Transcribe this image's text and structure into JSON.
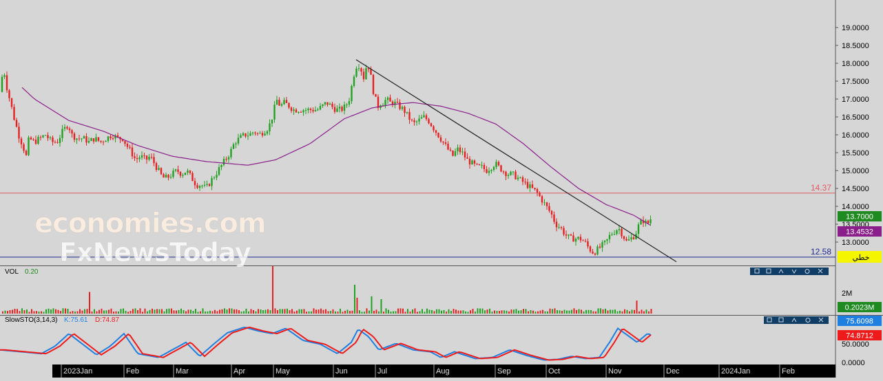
{
  "chart_data": {
    "type": "candlestick",
    "x_labels": [
      "2023Jan",
      "Feb",
      "Mar",
      "Apr",
      "May",
      "Jun",
      "Jul",
      "Aug",
      "Sep",
      "Oct",
      "Nov",
      "Dec",
      "2024Jan",
      "Feb"
    ],
    "price_ticks": [
      "19.0000",
      "18.5000",
      "18.0000",
      "17.5000",
      "17.0000",
      "16.5000",
      "16.0000",
      "15.5000",
      "15.0000",
      "14.5000",
      "14.0000",
      "13.5000",
      "13.0000"
    ],
    "ylim": [
      12.5,
      19.3
    ],
    "close_path": [
      [
        0,
        17.2
      ],
      [
        5,
        17.9
      ],
      [
        9,
        17.4
      ],
      [
        14,
        17.0
      ],
      [
        20,
        16.5
      ],
      [
        27,
        16.0
      ],
      [
        33,
        15.7
      ],
      [
        38,
        15.4
      ],
      [
        42,
        15.9
      ],
      [
        50,
        15.8
      ],
      [
        58,
        15.9
      ],
      [
        66,
        16.0
      ],
      [
        75,
        15.8
      ],
      [
        83,
        15.8
      ],
      [
        91,
        16.1
      ],
      [
        99,
        16.3
      ],
      [
        104,
        16.0
      ],
      [
        112,
        15.9
      ],
      [
        121,
        15.9
      ],
      [
        129,
        15.8
      ],
      [
        137,
        15.9
      ],
      [
        146,
        15.8
      ],
      [
        154,
        15.9
      ],
      [
        163,
        16.0
      ],
      [
        171,
        15.9
      ],
      [
        178,
        15.9
      ],
      [
        184,
        15.7
      ],
      [
        191,
        15.5
      ],
      [
        197,
        15.3
      ],
      [
        204,
        15.4
      ],
      [
        212,
        15.3
      ],
      [
        218,
        15.4
      ],
      [
        224,
        15.2
      ],
      [
        230,
        15.0
      ],
      [
        236,
        14.8
      ],
      [
        243,
        14.8
      ],
      [
        250,
        14.9
      ],
      [
        257,
        15.0
      ],
      [
        264,
        14.9
      ],
      [
        271,
        15.0
      ],
      [
        278,
        14.8
      ],
      [
        285,
        14.6
      ],
      [
        292,
        14.6
      ],
      [
        299,
        14.5
      ],
      [
        306,
        14.7
      ],
      [
        313,
        14.9
      ],
      [
        320,
        15.1
      ],
      [
        327,
        15.3
      ],
      [
        334,
        15.5
      ],
      [
        341,
        15.8
      ],
      [
        348,
        15.9
      ],
      [
        355,
        16.0
      ],
      [
        362,
        16.0
      ],
      [
        369,
        16.1
      ],
      [
        376,
        16.0
      ],
      [
        383,
        16.1
      ],
      [
        390,
        16.2
      ],
      [
        397,
        16.6
      ],
      [
        401,
        17.0
      ],
      [
        407,
        16.8
      ],
      [
        413,
        16.9
      ],
      [
        420,
        16.8
      ],
      [
        426,
        16.7
      ],
      [
        433,
        16.7
      ],
      [
        440,
        16.7
      ],
      [
        447,
        16.7
      ],
      [
        454,
        16.7
      ],
      [
        461,
        16.7
      ],
      [
        468,
        16.8
      ],
      [
        474,
        16.9
      ],
      [
        481,
        16.8
      ],
      [
        488,
        16.7
      ],
      [
        495,
        16.7
      ],
      [
        502,
        16.8
      ],
      [
        507,
        17.0
      ],
      [
        511,
        17.4
      ],
      [
        515,
        17.8
      ],
      [
        519,
        18.0
      ],
      [
        523,
        17.9
      ],
      [
        528,
        17.6
      ],
      [
        533,
        18.0
      ],
      [
        537,
        17.8
      ],
      [
        541,
        17.3
      ],
      [
        545,
        17.0
      ],
      [
        549,
        16.8
      ],
      [
        553,
        16.9
      ],
      [
        557,
        16.9
      ],
      [
        561,
        17.0
      ],
      [
        566,
        16.9
      ],
      [
        572,
        16.9
      ],
      [
        579,
        16.8
      ],
      [
        586,
        16.7
      ],
      [
        593,
        16.5
      ],
      [
        600,
        16.3
      ],
      [
        608,
        16.4
      ],
      [
        615,
        16.5
      ],
      [
        622,
        16.4
      ],
      [
        629,
        16.2
      ],
      [
        636,
        16.0
      ],
      [
        643,
        15.8
      ],
      [
        650,
        15.6
      ],
      [
        657,
        15.4
      ],
      [
        664,
        15.6
      ],
      [
        671,
        15.5
      ],
      [
        678,
        15.3
      ],
      [
        685,
        15.2
      ],
      [
        692,
        15.1
      ],
      [
        699,
        15.1
      ],
      [
        706,
        15.0
      ],
      [
        713,
        15.1
      ],
      [
        719,
        15.2
      ],
      [
        724,
        15.1
      ],
      [
        730,
        15.0
      ],
      [
        737,
        14.9
      ],
      [
        744,
        14.9
      ],
      [
        751,
        14.8
      ],
      [
        758,
        14.7
      ],
      [
        765,
        14.6
      ],
      [
        772,
        14.5
      ],
      [
        779,
        14.4
      ],
      [
        786,
        14.2
      ],
      [
        793,
        14.0
      ],
      [
        800,
        13.8
      ],
      [
        807,
        13.5
      ],
      [
        814,
        13.4
      ],
      [
        821,
        13.2
      ],
      [
        828,
        13.1
      ],
      [
        835,
        13.1
      ],
      [
        842,
        13.1
      ],
      [
        849,
        13.0
      ],
      [
        856,
        12.8
      ],
      [
        862,
        12.7
      ],
      [
        868,
        12.8
      ],
      [
        874,
        12.9
      ],
      [
        880,
        13.0
      ],
      [
        886,
        13.2
      ],
      [
        892,
        13.3
      ],
      [
        898,
        13.4
      ],
      [
        904,
        13.2
      ],
      [
        910,
        13.0
      ],
      [
        916,
        13.1
      ],
      [
        922,
        13.2
      ],
      [
        928,
        13.5
      ],
      [
        934,
        13.6
      ],
      [
        940,
        13.5
      ],
      [
        946,
        13.7
      ]
    ],
    "moving_average": [
      [
        0,
        17.9
      ],
      [
        50,
        17.0
      ],
      [
        100,
        16.4
      ],
      [
        150,
        16.1
      ],
      [
        200,
        15.7
      ],
      [
        250,
        15.4
      ],
      [
        300,
        15.25
      ],
      [
        330,
        15.2
      ],
      [
        360,
        15.15
      ],
      [
        400,
        15.3
      ],
      [
        450,
        15.75
      ],
      [
        500,
        16.45
      ],
      [
        540,
        16.75
      ],
      [
        570,
        16.85
      ],
      [
        600,
        16.9
      ],
      [
        640,
        16.8
      ],
      [
        680,
        16.6
      ],
      [
        720,
        16.3
      ],
      [
        760,
        15.75
      ],
      [
        800,
        15.1
      ],
      [
        840,
        14.5
      ],
      [
        880,
        14.05
      ],
      [
        920,
        13.75
      ],
      [
        946,
        13.45
      ]
    ],
    "trendline": [
      [
        517,
        18.1
      ],
      [
        982,
        12.45
      ]
    ],
    "horizontal_levels": [
      {
        "label": "14.37",
        "value": 14.37,
        "color": "#e05a60"
      },
      {
        "label": "12.58",
        "value": 12.58,
        "color": "#1c2a8e"
      }
    ],
    "last_price": {
      "label": "13.7000",
      "color": "#1f8a1f"
    },
    "ma_value": {
      "label": "13.4532",
      "color": "#8a1e8a"
    },
    "tag_box": {
      "label": "خطي",
      "color": "#f5f500"
    },
    "volume": {
      "title": "VOL",
      "value": "0.20",
      "axis_label": "2M",
      "last": "0.2023M",
      "spikes": [
        [
          131,
          1.5
        ],
        [
          397,
          3.3
        ],
        [
          516,
          2.0
        ],
        [
          520,
          1.1
        ],
        [
          540,
          1.2
        ],
        [
          555,
          1.0
        ],
        [
          926,
          0.9
        ]
      ]
    },
    "stochastic": {
      "title": "SlowSTO(3,14,3)",
      "k_label": "K:75.61",
      "d_label": "D:74.87",
      "k_value": "75.6098",
      "d_value": "74.8712",
      "ticks": [
        "50.0000",
        "0.0000"
      ],
      "k_color": "#1f7fe0",
      "d_color": "#ef1a1a"
    },
    "colors": {
      "up": "#22a022",
      "down": "#e62020",
      "ma": "#8a1e8a",
      "trend": "#222222"
    }
  },
  "watermark": {
    "line1": "economies.com",
    "line2": "FxNewsToday"
  }
}
